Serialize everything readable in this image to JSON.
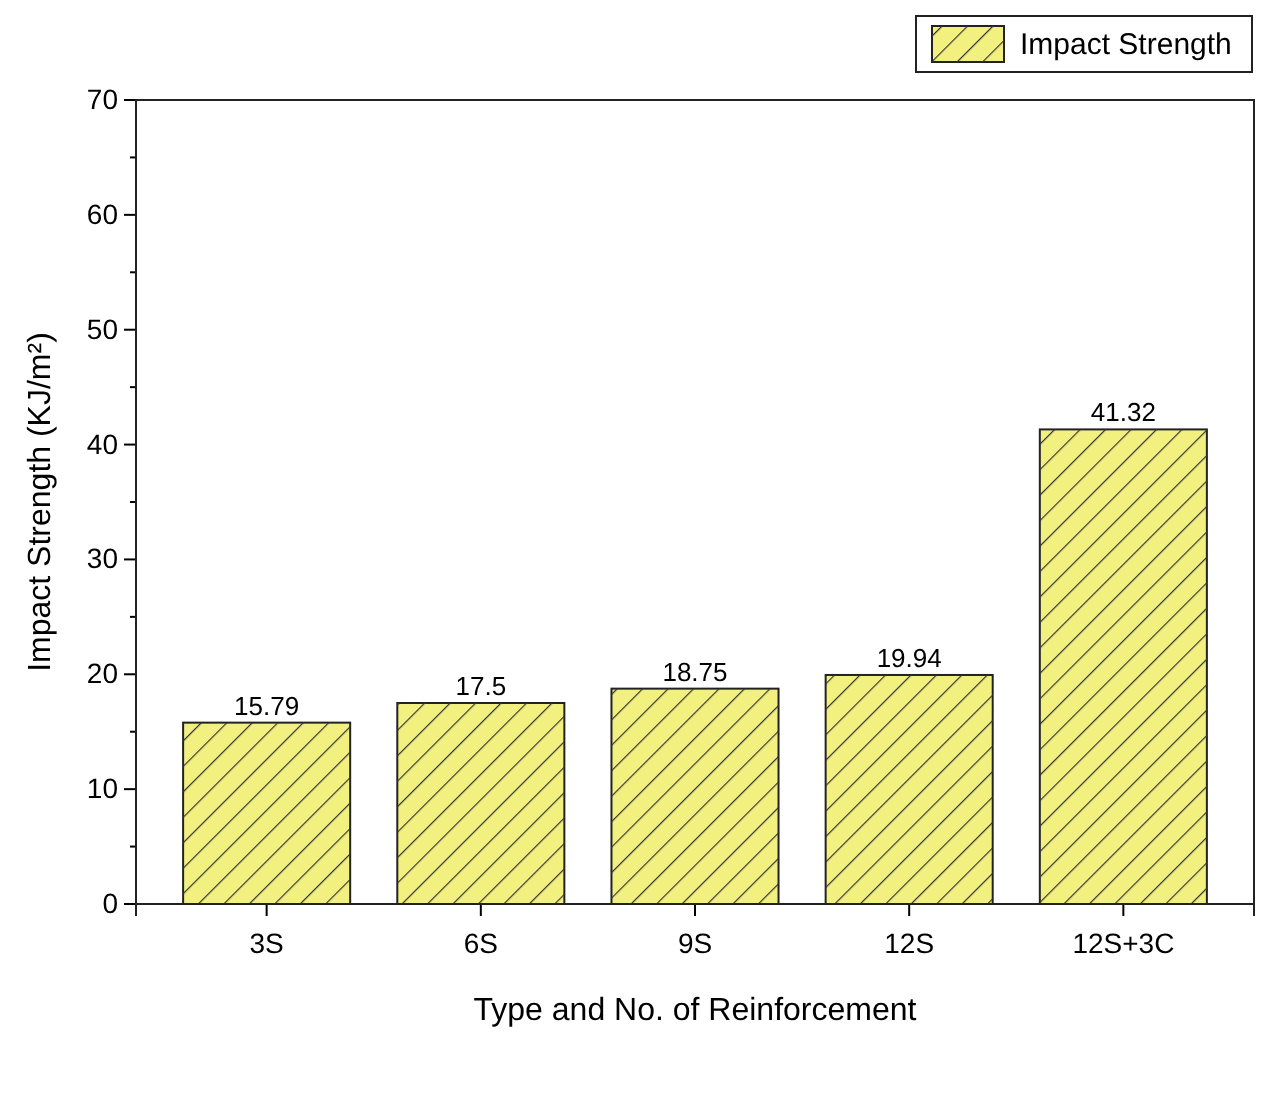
{
  "chart_data": {
    "type": "bar",
    "xlabel": "Type and No. of Reinforcement",
    "ylabel": "Impact Strength (KJ/m²)",
    "categories": [
      "3S",
      "6S",
      "9S",
      "12S",
      "12S+3C"
    ],
    "series": [
      {
        "name": "Impact Strength",
        "color": "#f2f07e",
        "values": [
          15.79,
          17.5,
          18.75,
          19.94,
          41.32
        ]
      }
    ],
    "ylim": [
      0,
      70
    ],
    "yticks": [
      0,
      {
        "value": 5,
        "label": null
      },
      10,
      {
        "value": 15,
        "label": null
      },
      20,
      {
        "value": 25,
        "label": null
      },
      30,
      {
        "value": 35,
        "label": null
      },
      40,
      {
        "value": 45,
        "label": null
      },
      50,
      {
        "value": 55,
        "label": null
      },
      60,
      {
        "value": 65,
        "label": null
      },
      70
    ],
    "data_labels": true,
    "legend": "top right",
    "grid": false
  }
}
